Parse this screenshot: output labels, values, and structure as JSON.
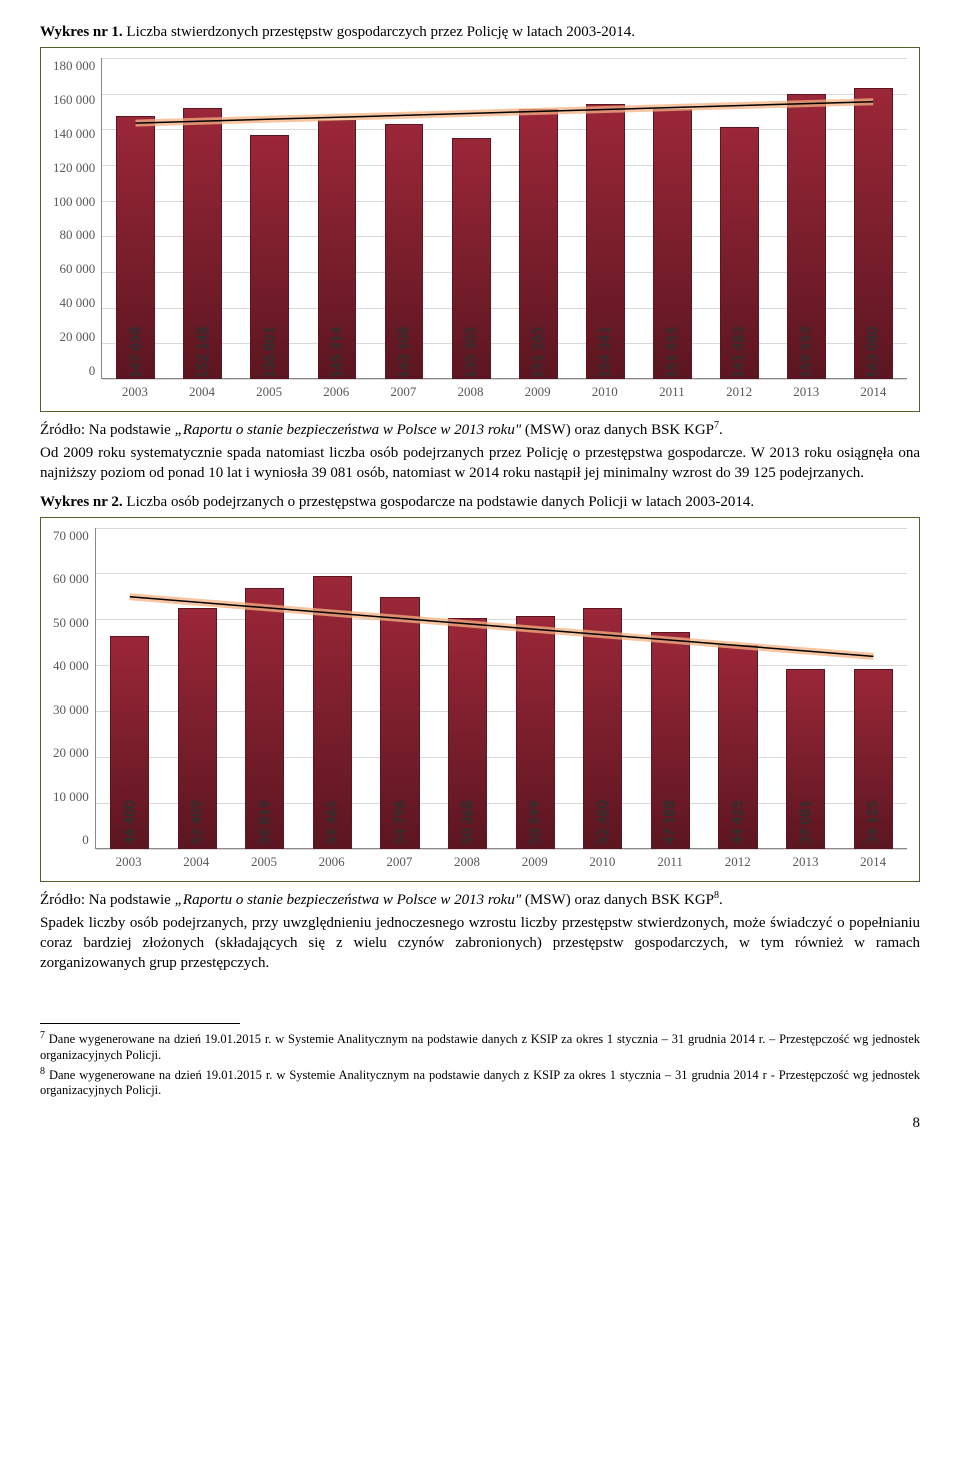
{
  "chart1": {
    "title_prefix": "Wykres nr 1.",
    "title_rest": " Liczba stwierdzonych przestępstw gospodarczych przez Policję w latach 2003-2014.",
    "type": "bar",
    "categories": [
      "2003",
      "2004",
      "2005",
      "2006",
      "2007",
      "2008",
      "2009",
      "2010",
      "2011",
      "2012",
      "2013",
      "2014"
    ],
    "values": [
      147658,
      152148,
      136801,
      145314,
      143108,
      135305,
      151265,
      154341,
      151655,
      141483,
      159553,
      163080
    ],
    "value_labels": [
      "147 658",
      "152 148",
      "136 801",
      "145 314",
      "143 108",
      "135 305",
      "151 265",
      "154 341",
      "151 655",
      "141 483",
      "159 553",
      "163 080"
    ],
    "bar_fill": "#9b2738",
    "bar_border": "#5c1621",
    "ymax": 180000,
    "ymin": 0,
    "ytick_step": 20000,
    "ytick_labels": [
      "180 000",
      "160 000",
      "140 000",
      "120 000",
      "100 000",
      "80 000",
      "60 000",
      "40 000",
      "20 000",
      "0"
    ],
    "grid_color": "#d9d9d9",
    "background": "#ffffff",
    "trend_glow": "#f4b183",
    "trend_line": "#000000",
    "trend_y_start": 143500,
    "trend_y_end": 155500,
    "label_color": "#2f2f2f",
    "label_fontsize": 16
  },
  "source1": {
    "prefix": "Źródło: Na podstawie ",
    "ital": "„Raportu o stanie bezpieczeństwa w Polsce w 2013 roku\"",
    "suffix": " (MSW) oraz danych BSK KGP",
    "fn": "7",
    "end": "."
  },
  "para1": "Od 2009 roku systematycznie spada natomiast liczba osób podejrzanych przez Policję o przestępstwa gospodarcze. W 2013 roku osiągnęła ona najniższy poziom od ponad 10 lat i wyniosła 39 081 osób, natomiast w 2014 roku nastąpił jej minimalny wzrost do 39 125 podejrzanych.",
  "chart2": {
    "title_prefix": "Wykres nr 2.",
    "title_rest": " Liczba osób podejrzanych o przestępstwa gospodarcze na podstawie danych Policji w latach 2003-2014.",
    "type": "bar",
    "categories": [
      "2003",
      "2004",
      "2005",
      "2006",
      "2007",
      "2008",
      "2009",
      "2010",
      "2011",
      "2012",
      "2013",
      "2014"
    ],
    "values": [
      46400,
      52409,
      56819,
      59465,
      54796,
      50368,
      50599,
      52480,
      47188,
      44425,
      39081,
      39125
    ],
    "value_labels": [
      "46 400",
      "52 409",
      "56 819",
      "59 465",
      "54 796",
      "50 368",
      "50 599",
      "52 480",
      "47 188",
      "44 425",
      "39 081",
      "39 125"
    ],
    "bar_fill": "#9b2738",
    "bar_border": "#5c1621",
    "ymax": 70000,
    "ymin": 0,
    "ytick_step": 10000,
    "ytick_labels": [
      "70 000",
      "60 000",
      "50 000",
      "40 000",
      "30 000",
      "20 000",
      "10 000",
      "0"
    ],
    "grid_color": "#d9d9d9",
    "background": "#ffffff",
    "trend_glow": "#f4b183",
    "trend_line": "#000000",
    "trend_y_start": 55000,
    "trend_y_end": 42000,
    "label_color": "#2f2f2f",
    "label_fontsize": 16
  },
  "source2": {
    "prefix": "Źródło: Na podstawie ",
    "ital": "„Raportu o stanie bezpieczeństwa w Polsce w 2013 roku\"",
    "suffix": " (MSW) oraz danych BSK KGP",
    "fn": "8",
    "end": "."
  },
  "para2": "Spadek liczby osób podejrzanych, przy uwzględnieniu jednoczesnego wzrostu liczby przestępstw stwierdzonych, może świadczyć o popełnianiu coraz bardziej złożonych (składających się z wielu czynów zabronionych) przestępstw gospodarczych, w tym również w ramach zorganizowanych grup przestępczych.",
  "footnotes": {
    "f7_num": "7",
    "f7_text": " Dane wygenerowane na dzień 19.01.2015 r. w Systemie Analitycznym na podstawie danych z KSIP za okres 1 stycznia – 31 grudnia 2014 r. – Przestępczość wg jednostek organizacyjnych Policji.",
    "f8_num": "8",
    "f8_text": " Dane wygenerowane na dzień 19.01.2015 r. w Systemie Analitycznym na podstawie danych z KSIP za okres 1 stycznia – 31 grudnia 2014 r - Przestępczość wg jednostek organizacyjnych Policji."
  },
  "page_number": "8"
}
